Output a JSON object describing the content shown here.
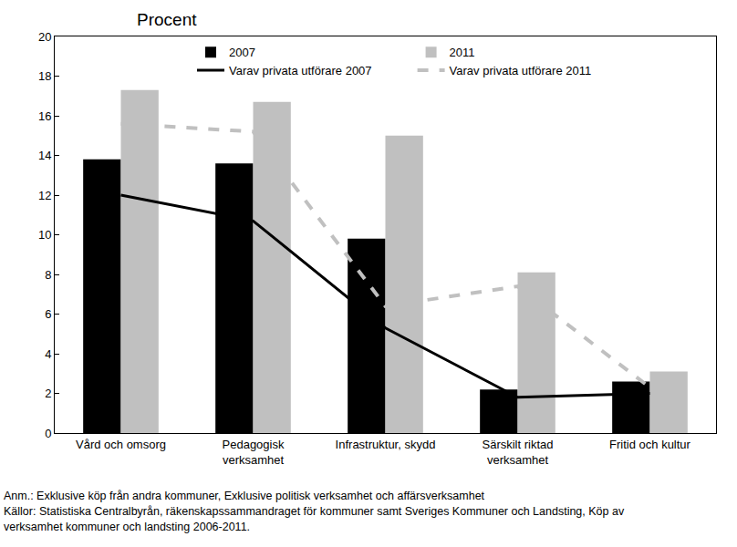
{
  "chart_data": {
    "type": "bar",
    "ylabel": "Procent",
    "categories": [
      "Vård och omsorg",
      "Pedagogisk verksamhet",
      "Infrastruktur, skydd",
      "Särskilt riktad verksamhet",
      "Fritid och kultur"
    ],
    "series": [
      {
        "name": "2007",
        "type": "bar",
        "color": "#000000",
        "values": [
          13.8,
          13.6,
          9.8,
          2.2,
          2.6
        ]
      },
      {
        "name": "2011",
        "type": "bar",
        "color": "#c0c0c0",
        "values": [
          17.3,
          16.7,
          15.0,
          8.1,
          3.1
        ]
      },
      {
        "name": "Varav privata utförare 2007",
        "type": "line",
        "line_style": "solid",
        "color": "#000000",
        "values": [
          12.0,
          10.7,
          5.3,
          1.8,
          2.0
        ]
      },
      {
        "name": "Varav privata utförare 2011",
        "type": "line",
        "line_style": "dashed",
        "color": "#c0c0c0",
        "values": [
          15.6,
          15.2,
          6.4,
          7.4,
          2.3
        ]
      }
    ],
    "ylim": [
      0,
      20
    ],
    "yticks": [
      0,
      2,
      4,
      6,
      8,
      10,
      12,
      14,
      16,
      18,
      20
    ],
    "grid": false,
    "legend": "top",
    "annotations": [
      "Anm.: Exklusive köp från andra kommuner, Exklusive politisk verksamhet och affärsverksamhet",
      "Källor: Statistiska Centralbyrån, räkenskapssammandraget för kommuner samt Sveriges Kommuner och Landsting, Köp av",
      "verksamhet kommuner och landsting 2006-2011."
    ]
  }
}
